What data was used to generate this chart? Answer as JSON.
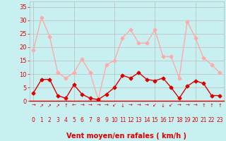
{
  "hours": [
    0,
    1,
    2,
    3,
    4,
    5,
    6,
    7,
    8,
    9,
    10,
    11,
    12,
    13,
    14,
    15,
    16,
    17,
    18,
    19,
    20,
    21,
    22,
    23
  ],
  "wind_mean": [
    3,
    8,
    8,
    2,
    1,
    6,
    2.5,
    1,
    0.5,
    2.5,
    5,
    9.5,
    8.5,
    10.5,
    8,
    7.5,
    8.5,
    5,
    1,
    5.5,
    7.5,
    6.5,
    2,
    2
  ],
  "wind_gust": [
    19,
    31,
    24,
    10.5,
    8.5,
    10.5,
    15.5,
    10.5,
    0.5,
    13.5,
    15,
    23.5,
    26.5,
    21.5,
    21.5,
    26.5,
    16.5,
    16.5,
    8.5,
    29.5,
    23.5,
    16,
    13.5,
    10.5
  ],
  "wind_dirs": [
    "→",
    "↗",
    "↗",
    "↗",
    "↑",
    "←",
    "→",
    "→",
    "→",
    "→",
    "↙",
    "↓",
    "→",
    "→",
    "→",
    "↙",
    "↓",
    "↙",
    "→",
    "→",
    "→",
    "↑",
    "↑",
    "↑"
  ],
  "wind_mean_color": "#dd0000",
  "wind_gust_color": "#ffaaaa",
  "background_color": "#c8f0f0",
  "grid_color": "#bbbbbb",
  "tick_color": "#dd0000",
  "xlabel": "Vent moyen/en rafales ( km/h )",
  "yticks": [
    0,
    5,
    10,
    15,
    20,
    25,
    30,
    35
  ],
  "ylim": [
    0,
    37
  ],
  "xlim": [
    -0.5,
    23.5
  ],
  "marker": "D",
  "markersize": 2.5,
  "linewidth": 1.0
}
